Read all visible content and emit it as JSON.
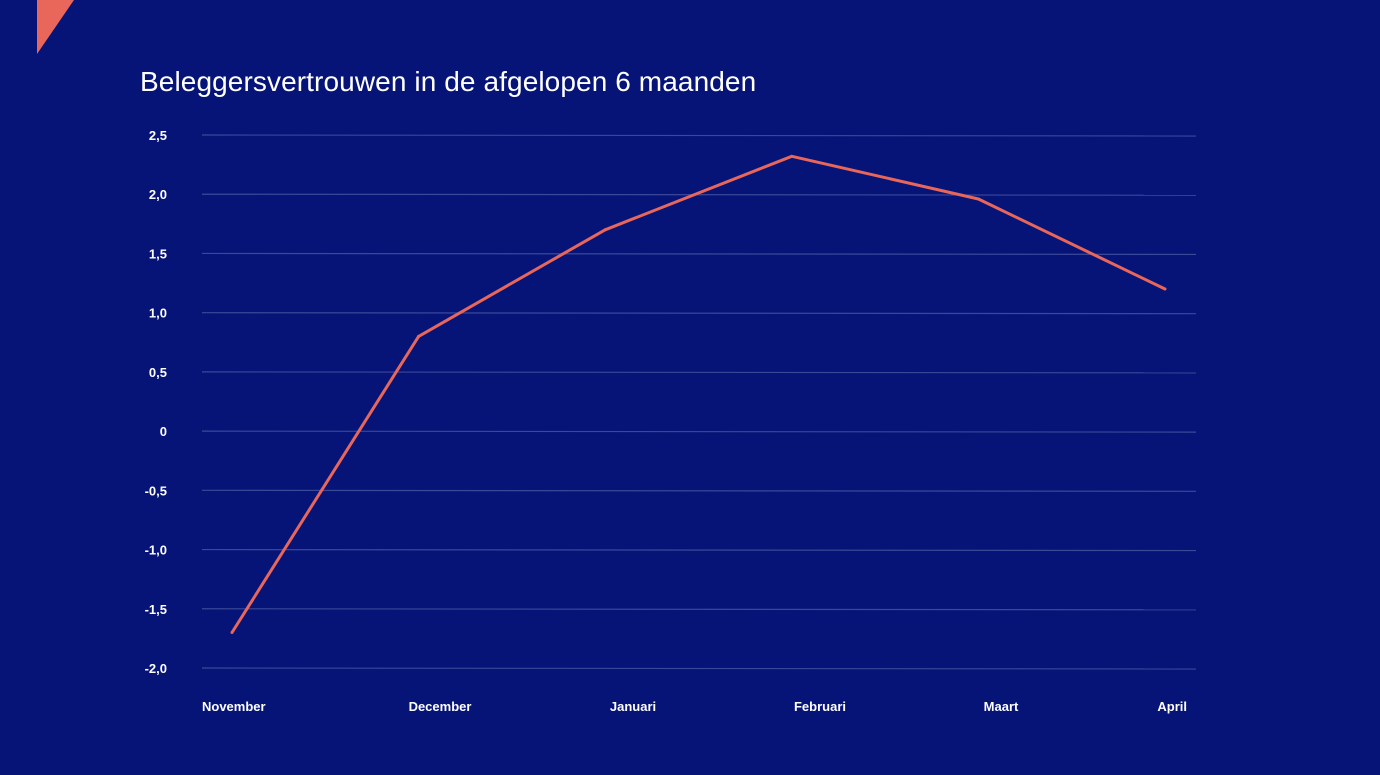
{
  "colors": {
    "background": "#061478",
    "accent": "#e8665a",
    "gridline": "#3a4898",
    "text": "#ffffff"
  },
  "chart_data": {
    "type": "line",
    "title": "Beleggersvertrouwen in de afgelopen 6 maanden",
    "xlabel": "",
    "ylabel": "",
    "categories": [
      "November",
      "December",
      "Januari",
      "Februari",
      "Maart",
      "April"
    ],
    "series": [
      {
        "values": [
          -1.7,
          0.8,
          1.7,
          2.32,
          1.96,
          1.2
        ]
      }
    ],
    "ylim": [
      -2.0,
      2.5
    ],
    "yticks": [
      2.5,
      2.0,
      1.5,
      1.0,
      0.5,
      0,
      -0.5,
      -1.0,
      -1.5,
      -2.0
    ],
    "ytick_labels": [
      "2,5",
      "2,0",
      "1,5",
      "1,0",
      "0,5",
      "0",
      "-0,5",
      "-1,0",
      "-1,5",
      "-2,0"
    ],
    "grid": true,
    "legend": "none"
  }
}
